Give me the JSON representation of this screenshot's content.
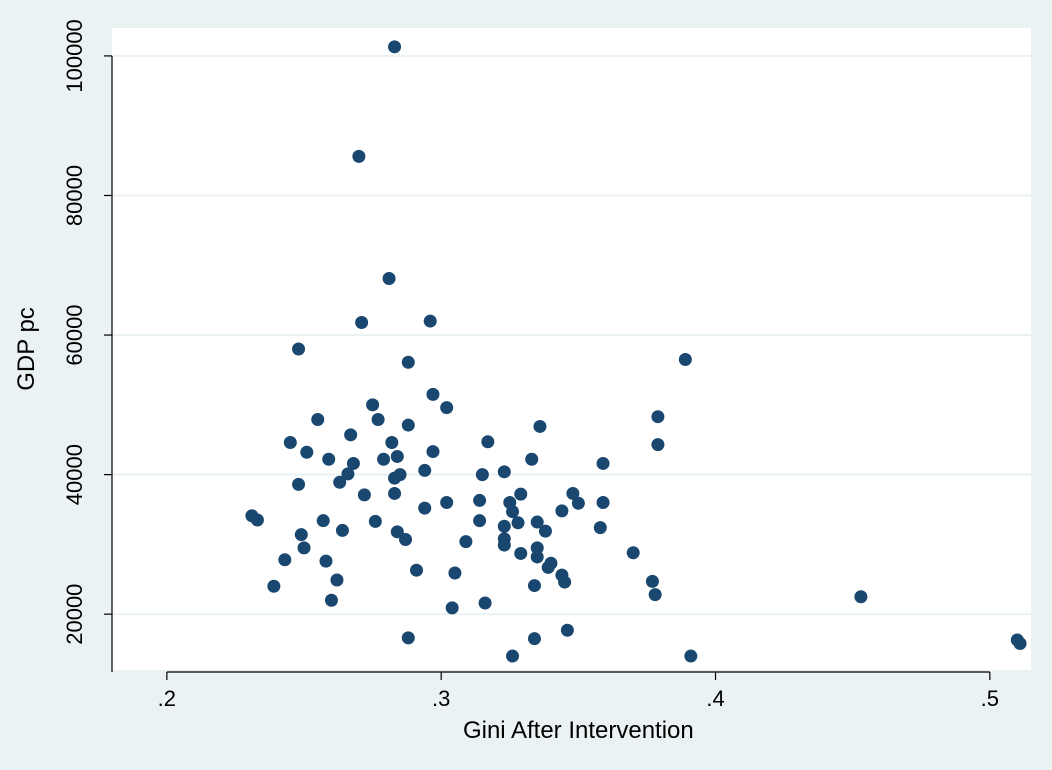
{
  "chart_data": {
    "type": "scatter",
    "title": "",
    "xlabel": "Gini After Intervention",
    "ylabel": "GDP pc",
    "xlim": [
      0.18,
      0.515
    ],
    "ylim": [
      12000,
      104000
    ],
    "x_ticks": [
      0.2,
      0.3,
      0.4,
      0.5
    ],
    "x_tick_labels": [
      ".2",
      ".3",
      ".4",
      ".5"
    ],
    "y_ticks": [
      20000,
      40000,
      60000,
      80000,
      100000
    ],
    "y_tick_labels": [
      "20000",
      "40000",
      "60000",
      "80000",
      "100000"
    ],
    "grid": true,
    "legend": "none",
    "colors": {
      "background": "#eaf2f3",
      "plot": "#ffffff",
      "marker": "#1a476f"
    },
    "points": [
      [
        0.231,
        34100
      ],
      [
        0.233,
        33500
      ],
      [
        0.239,
        24000
      ],
      [
        0.243,
        27800
      ],
      [
        0.245,
        44600
      ],
      [
        0.248,
        58000
      ],
      [
        0.248,
        38600
      ],
      [
        0.249,
        31400
      ],
      [
        0.25,
        29500
      ],
      [
        0.251,
        43200
      ],
      [
        0.255,
        47900
      ],
      [
        0.257,
        33400
      ],
      [
        0.258,
        27600
      ],
      [
        0.259,
        42200
      ],
      [
        0.26,
        22000
      ],
      [
        0.262,
        24900
      ],
      [
        0.263,
        38900
      ],
      [
        0.264,
        32000
      ],
      [
        0.266,
        40100
      ],
      [
        0.267,
        45700
      ],
      [
        0.268,
        41600
      ],
      [
        0.27,
        85600
      ],
      [
        0.271,
        61800
      ],
      [
        0.272,
        37100
      ],
      [
        0.275,
        50000
      ],
      [
        0.276,
        33300
      ],
      [
        0.277,
        47900
      ],
      [
        0.279,
        42200
      ],
      [
        0.281,
        68100
      ],
      [
        0.282,
        44600
      ],
      [
        0.283,
        101300
      ],
      [
        0.283,
        39500
      ],
      [
        0.283,
        37300
      ],
      [
        0.284,
        31800
      ],
      [
        0.284,
        42600
      ],
      [
        0.285,
        40000
      ],
      [
        0.287,
        30700
      ],
      [
        0.288,
        56100
      ],
      [
        0.288,
        47100
      ],
      [
        0.288,
        16600
      ],
      [
        0.291,
        26300
      ],
      [
        0.294,
        35200
      ],
      [
        0.294,
        40600
      ],
      [
        0.296,
        62000
      ],
      [
        0.297,
        51500
      ],
      [
        0.297,
        43300
      ],
      [
        0.302,
        49600
      ],
      [
        0.302,
        36000
      ],
      [
        0.304,
        20900
      ],
      [
        0.305,
        25900
      ],
      [
        0.309,
        30400
      ],
      [
        0.314,
        36300
      ],
      [
        0.314,
        33400
      ],
      [
        0.315,
        40000
      ],
      [
        0.316,
        21600
      ],
      [
        0.317,
        44700
      ],
      [
        0.323,
        40400
      ],
      [
        0.323,
        32600
      ],
      [
        0.323,
        30800
      ],
      [
        0.323,
        29900
      ],
      [
        0.325,
        36000
      ],
      [
        0.326,
        34700
      ],
      [
        0.326,
        14000
      ],
      [
        0.328,
        33100
      ],
      [
        0.329,
        37200
      ],
      [
        0.329,
        28700
      ],
      [
        0.333,
        42200
      ],
      [
        0.334,
        24100
      ],
      [
        0.334,
        16500
      ],
      [
        0.335,
        33200
      ],
      [
        0.335,
        29500
      ],
      [
        0.335,
        28200
      ],
      [
        0.336,
        46900
      ],
      [
        0.338,
        31900
      ],
      [
        0.339,
        26700
      ],
      [
        0.34,
        27300
      ],
      [
        0.344,
        25600
      ],
      [
        0.344,
        34800
      ],
      [
        0.345,
        24600
      ],
      [
        0.346,
        17700
      ],
      [
        0.348,
        37300
      ],
      [
        0.35,
        35900
      ],
      [
        0.358,
        32400
      ],
      [
        0.359,
        41600
      ],
      [
        0.359,
        36000
      ],
      [
        0.37,
        28800
      ],
      [
        0.377,
        24700
      ],
      [
        0.378,
        22800
      ],
      [
        0.379,
        48300
      ],
      [
        0.379,
        44300
      ],
      [
        0.389,
        56500
      ],
      [
        0.391,
        14000
      ],
      [
        0.453,
        22500
      ],
      [
        0.51,
        16300
      ],
      [
        0.511,
        15800
      ]
    ]
  }
}
